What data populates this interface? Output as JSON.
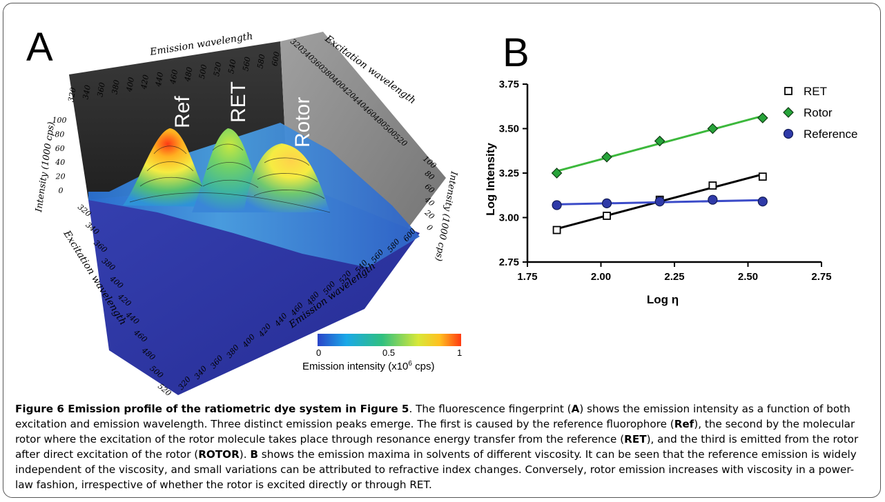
{
  "panelA": {
    "letter": "A",
    "peak_labels": {
      "ref": "Ref",
      "ret": "RET",
      "rotor": "Rotor"
    },
    "axis_labels": {
      "back_emission": "Emission wavelength",
      "back_excitation": "Excitation wavelength",
      "left_intensity": "Intensity (1000 cps)",
      "right_intensity": "Intensity (1000 cps)",
      "front_excitation": "Excitation wavelength",
      "front_emission": "Emission wavelength"
    },
    "ticks": {
      "back_emission": [
        "320",
        "340",
        "360",
        "380",
        "400",
        "420",
        "440",
        "460",
        "480",
        "500",
        "520",
        "540",
        "560",
        "580",
        "600"
      ],
      "back_excitation": [
        "320",
        "340",
        "360",
        "380",
        "400",
        "420",
        "440",
        "460",
        "480",
        "500",
        "520"
      ],
      "left_intensity": [
        "100",
        "80",
        "60",
        "40",
        "20",
        "0"
      ],
      "right_intensity": [
        "100",
        "80",
        "60",
        "40",
        "20",
        "0"
      ],
      "front_excitation": [
        "320",
        "340",
        "360",
        "380",
        "400",
        "420",
        "440",
        "460",
        "480",
        "500",
        "520"
      ],
      "front_emission": [
        "320",
        "340",
        "360",
        "380",
        "400",
        "420",
        "440",
        "460",
        "480",
        "500",
        "520",
        "540",
        "560",
        "580",
        "600"
      ]
    },
    "colorbar": {
      "ticks": [
        "0",
        "0.5",
        "1"
      ],
      "label_prefix": "Emission intensity (x10",
      "label_exp": "6",
      "label_suffix": " cps)"
    }
  },
  "panelB": {
    "letter": "B"
  },
  "chart_data": {
    "type": "scatter",
    "xlabel": "Log η",
    "ylabel": "Log Intensity",
    "xlim": [
      1.75,
      2.75
    ],
    "ylim": [
      2.75,
      3.75
    ],
    "xticks": [
      "1.75",
      "2.00",
      "2.25",
      "2.50",
      "2.75"
    ],
    "yticks": [
      "2.75",
      "3.00",
      "3.25",
      "3.50",
      "3.75"
    ],
    "legend_position": "right",
    "series": [
      {
        "name": "RET",
        "marker": "square-open",
        "color": "#000000",
        "line_color": "#000000",
        "x": [
          1.85,
          2.02,
          2.2,
          2.38,
          2.55
        ],
        "y": [
          2.93,
          3.01,
          3.1,
          3.18,
          3.23
        ]
      },
      {
        "name": "Rotor",
        "marker": "diamond",
        "color": "#2a8a2a",
        "line_color": "#3cb83c",
        "x": [
          1.85,
          2.02,
          2.2,
          2.38,
          2.55
        ],
        "y": [
          3.25,
          3.34,
          3.43,
          3.5,
          3.56
        ]
      },
      {
        "name": "Reference",
        "marker": "circle",
        "color": "#2a2f8c",
        "line_color": "#3b4bc8",
        "x": [
          1.85,
          2.02,
          2.2,
          2.38,
          2.55
        ],
        "y": [
          3.07,
          3.08,
          3.09,
          3.1,
          3.09
        ]
      }
    ]
  },
  "caption": {
    "title": "Figure 6 Emission profile of the ratiometric dye system in Figure 5",
    "p1": ". The fluorescence fingerprint (",
    "b1": "A",
    "p2": ") shows the emission intensity as a function of both excitation and emission wavelength. Three distinct emission peaks emerge. The first is caused by the reference fluorophore (",
    "b2": "Ref",
    "p3": "), the second by the molecular rotor where the excitation of the rotor molecule takes place through resonance energy transfer from the reference (",
    "b3": "RET",
    "p4": "), and the third is emitted from the rotor after direct excitation of the rotor (",
    "b4": "ROTOR",
    "p5": "). ",
    "b5": "B",
    "p6": " shows the emission maxima in solvents of different viscosity. It can be seen that the reference emission is widely independent of the viscosity, and small variations can be attributed to refractive index changes. Conversely, rotor emission increases with viscosity in a power-law fashion, irrespective of whether the rotor is excited directly or through RET."
  },
  "colors": {
    "back_wall": "#303030",
    "side_wall": "#8a8a8a",
    "floor": "#2f37a6",
    "peak_hot": "#ff4a1a",
    "peak_mid": "#f4e640",
    "peak_green": "#43c07a",
    "surface_base": "#3a86d8"
  }
}
